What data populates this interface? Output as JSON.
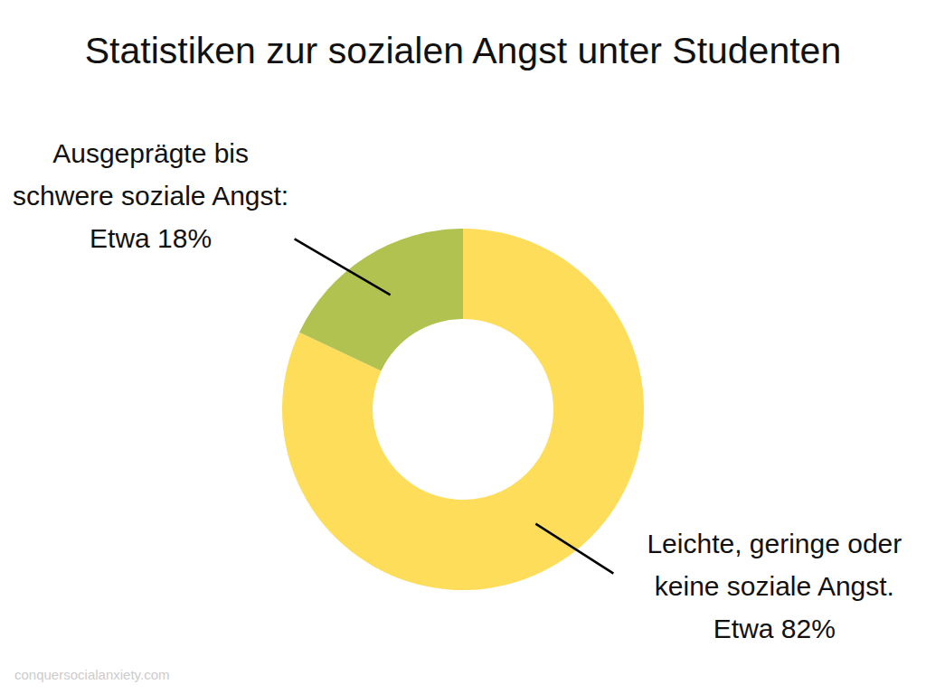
{
  "chart_data": {
    "type": "pie",
    "title": "Statistiken zur sozialen Angst unter Studenten",
    "categories": [
      "Leichte, geringe oder keine soziale Angst.",
      "Ausgeprägte bis schwere soziale Angst:"
    ],
    "values": [
      82,
      18
    ],
    "value_labels": [
      "Etwa 82%",
      "Etwa 18%"
    ],
    "colors": [
      "#fedd5a",
      "#b2c251"
    ],
    "data_labels": true,
    "source": "conquersocialanxiety.com"
  }
}
